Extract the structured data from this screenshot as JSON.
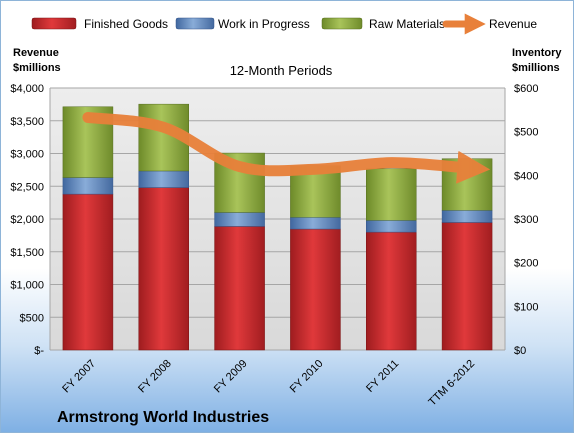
{
  "chart_data": {
    "type": "bar",
    "stacked": true,
    "title": "12-Month Periods",
    "company": "Armstrong World Industries",
    "categories": [
      "FY 2007",
      "FY 2008",
      "FY 2009",
      "FY 2010",
      "FY 2011",
      "TTM 6-2012"
    ],
    "y_left": {
      "label_line1": "Revenue",
      "label_line2": "$millions",
      "ylim": [
        0,
        4000
      ],
      "ticks": [
        {
          "value": 0,
          "label": "$-"
        },
        {
          "value": 500,
          "label": "$500"
        },
        {
          "value": 1000,
          "label": "$1,000"
        },
        {
          "value": 1500,
          "label": "$1,500"
        },
        {
          "value": 2000,
          "label": "$2,000"
        },
        {
          "value": 2500,
          "label": "$2,500"
        },
        {
          "value": 3000,
          "label": "$3,000"
        },
        {
          "value": 3500,
          "label": "$3,500"
        },
        {
          "value": 4000,
          "label": "$4,000"
        }
      ]
    },
    "y_right": {
      "label_line1": "Inventory",
      "label_line2": "$millions",
      "ylim": [
        0,
        600
      ],
      "ticks": [
        {
          "value": 0,
          "label": "$0"
        },
        {
          "value": 100,
          "label": "$100"
        },
        {
          "value": 200,
          "label": "$200"
        },
        {
          "value": 300,
          "label": "$300"
        },
        {
          "value": 400,
          "label": "$400"
        },
        {
          "value": 500,
          "label": "$500"
        },
        {
          "value": 600,
          "label": "$600"
        }
      ]
    },
    "series": [
      {
        "name": "Finished Goods",
        "axis": "right",
        "color": "#c0282a",
        "values": [
          357,
          372,
          283,
          277,
          270,
          292
        ]
      },
      {
        "name": "Work in Progress",
        "axis": "right",
        "color": "#5b86bf",
        "values": [
          38,
          38,
          32,
          27,
          27,
          28
        ]
      },
      {
        "name": "Raw Materials",
        "axis": "right",
        "color": "#8aa33e",
        "values": [
          162,
          153,
          136,
          118,
          118,
          118
        ]
      },
      {
        "name": "Revenue",
        "axis": "left",
        "type": "line",
        "color": "#e8803a",
        "values": [
          3550,
          3400,
          2800,
          2760,
          2860,
          2780
        ]
      }
    ],
    "grid": true,
    "legend_position": "top"
  }
}
